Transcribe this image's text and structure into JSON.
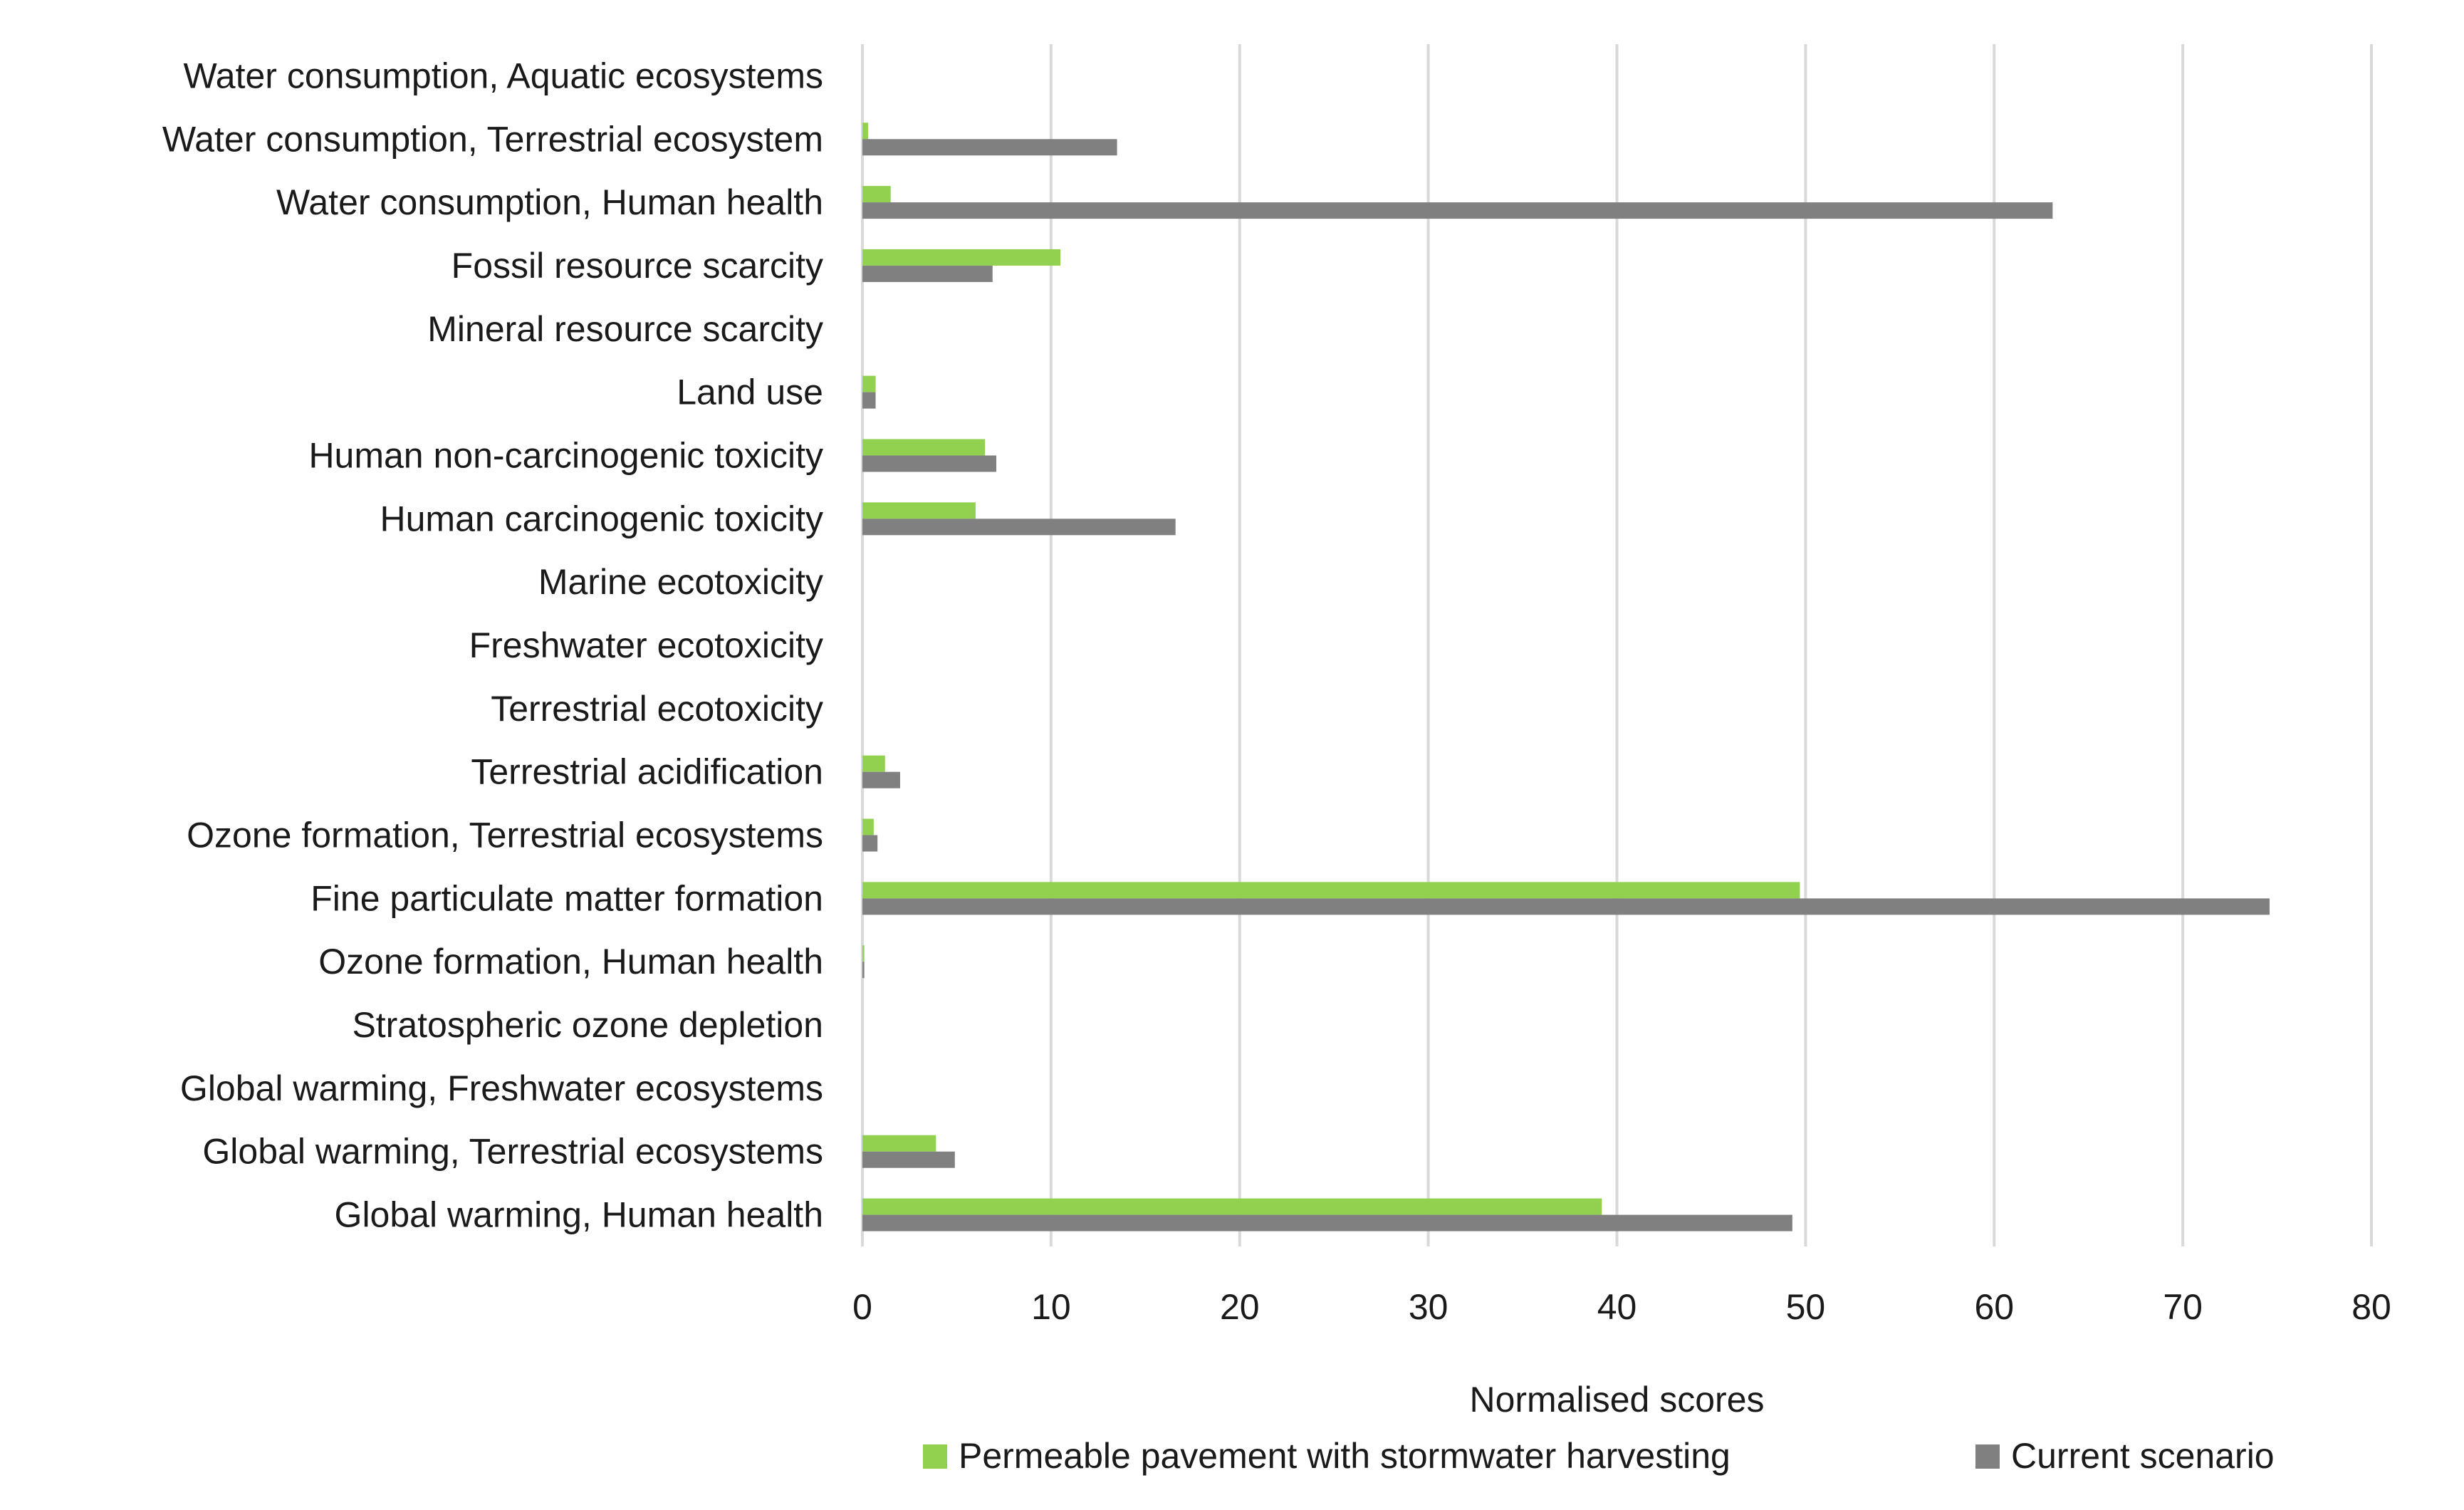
{
  "chart_data": {
    "type": "bar",
    "orientation": "horizontal",
    "title": "",
    "xlabel": "Normalised scores",
    "ylabel": "",
    "xlim": [
      0,
      80
    ],
    "xticks": [
      0,
      10,
      20,
      30,
      40,
      50,
      60,
      70,
      80
    ],
    "grid": "vertical",
    "legend_position": "bottom",
    "categories": [
      "Water consumption, Aquatic ecosystems",
      "Water consumption, Terrestrial ecosystem",
      "Water consumption, Human health",
      "Fossil resource scarcity",
      "Mineral resource scarcity",
      "Land use",
      "Human non-carcinogenic toxicity",
      "Human carcinogenic toxicity",
      "Marine ecotoxicity",
      "Freshwater ecotoxicity",
      "Terrestrial ecotoxicity",
      "Terrestrial acidification",
      "Ozone formation, Terrestrial ecosystems",
      "Fine particulate matter formation",
      "Ozone formation, Human health",
      "Stratospheric ozone depletion",
      "Global warming, Freshwater ecosystems",
      "Global warming, Terrestrial ecosystems",
      "Global warming, Human health"
    ],
    "series": [
      {
        "name": "Permeable pavement with stormwater harvesting",
        "color": "#92d050",
        "values": [
          0,
          0.3,
          1.5,
          10.5,
          0,
          0.7,
          6.5,
          6.0,
          0,
          0,
          0,
          1.2,
          0.6,
          49.7,
          0.1,
          0,
          0,
          3.9,
          39.2
        ]
      },
      {
        "name": "Current scenario",
        "color": "#808080",
        "values": [
          0,
          13.5,
          63.1,
          6.9,
          0,
          0.7,
          7.1,
          16.6,
          0,
          0,
          0,
          2.0,
          0.8,
          74.6,
          0.1,
          0,
          0,
          4.9,
          49.3
        ]
      }
    ]
  }
}
